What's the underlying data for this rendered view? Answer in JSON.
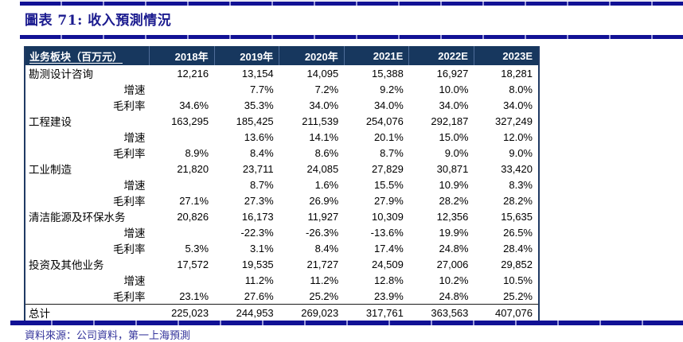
{
  "figure": {
    "title": "圖表 71: 收入預測情況",
    "source": "資料來源：公司資料，第一上海預測"
  },
  "colors": {
    "accent_bar": "#111195",
    "accent_bar_tick": "#9a9ada",
    "header_bg": "#17375e",
    "header_text": "#ffffff",
    "title_text": "#1b1b8f",
    "source_text": "#33339b",
    "body_text": "#000000"
  },
  "table": {
    "columns": [
      "业务板块（百万元）",
      "2018年",
      "2019年",
      "2020年",
      "2021E",
      "2022E",
      "2023E"
    ],
    "rows": [
      {
        "label": "勘测设计咨询",
        "type": "segment",
        "values": [
          "12,216",
          "13,154",
          "14,095",
          "15,388",
          "16,927",
          "18,281"
        ]
      },
      {
        "label": "增速",
        "type": "sub",
        "values": [
          "",
          "7.7%",
          "7.2%",
          "9.2%",
          "10.0%",
          "8.0%"
        ]
      },
      {
        "label": "毛利率",
        "type": "sub",
        "values": [
          "34.6%",
          "35.3%",
          "34.0%",
          "34.0%",
          "34.0%",
          "34.0%"
        ]
      },
      {
        "label": "工程建设",
        "type": "segment",
        "values": [
          "163,295",
          "185,425",
          "211,539",
          "254,076",
          "292,187",
          "327,249"
        ]
      },
      {
        "label": "增速",
        "type": "sub",
        "values": [
          "",
          "13.6%",
          "14.1%",
          "20.1%",
          "15.0%",
          "12.0%"
        ]
      },
      {
        "label": "毛利率",
        "type": "sub",
        "values": [
          "8.9%",
          "8.4%",
          "8.6%",
          "8.7%",
          "9.0%",
          "9.0%"
        ]
      },
      {
        "label": "工业制造",
        "type": "segment",
        "values": [
          "21,820",
          "23,711",
          "24,085",
          "27,829",
          "30,871",
          "33,420"
        ]
      },
      {
        "label": "增速",
        "type": "sub",
        "values": [
          "",
          "8.7%",
          "1.6%",
          "15.5%",
          "10.9%",
          "8.3%"
        ]
      },
      {
        "label": "毛利率",
        "type": "sub",
        "values": [
          "27.1%",
          "27.3%",
          "26.9%",
          "27.9%",
          "28.2%",
          "28.2%"
        ]
      },
      {
        "label": "清洁能源及环保水务",
        "type": "segment",
        "values": [
          "20,826",
          "16,173",
          "11,927",
          "10,309",
          "12,356",
          "15,635"
        ]
      },
      {
        "label": "增速",
        "type": "sub",
        "values": [
          "",
          "-22.3%",
          "-26.3%",
          "-13.6%",
          "19.9%",
          "26.5%"
        ]
      },
      {
        "label": "毛利率",
        "type": "sub",
        "values": [
          "5.3%",
          "3.1%",
          "8.4%",
          "17.4%",
          "24.8%",
          "28.4%"
        ]
      },
      {
        "label": "投资及其他业务",
        "type": "segment",
        "values": [
          "17,572",
          "19,535",
          "21,727",
          "24,509",
          "27,006",
          "29,852"
        ]
      },
      {
        "label": "增速",
        "type": "sub",
        "values": [
          "",
          "11.2%",
          "11.2%",
          "12.8%",
          "10.2%",
          "10.5%"
        ]
      },
      {
        "label": "毛利率",
        "type": "sub",
        "values": [
          "23.1%",
          "27.6%",
          "25.2%",
          "23.9%",
          "24.8%",
          "25.2%"
        ]
      },
      {
        "label": "总计",
        "type": "total",
        "values": [
          "225,023",
          "244,953",
          "269,023",
          "317,761",
          "363,563",
          "407,076"
        ]
      }
    ]
  }
}
